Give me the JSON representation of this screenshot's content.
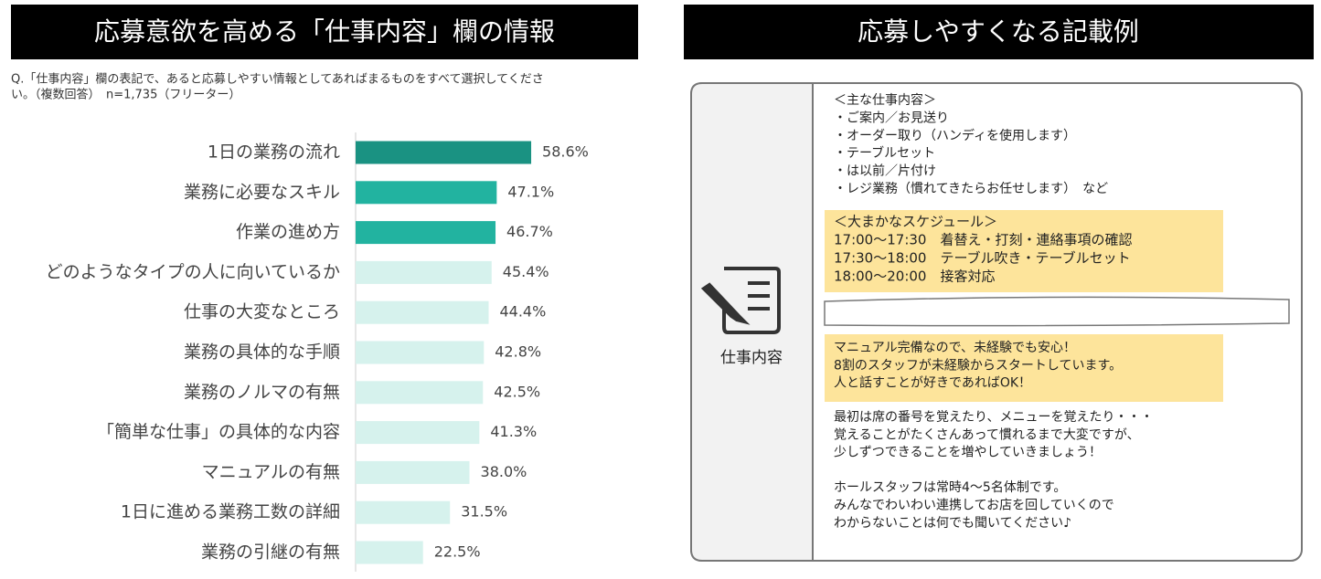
{
  "chart_data": {
    "type": "hbar",
    "title": "応募意欲を高める「仕事内容」欄の情報",
    "subtitle": [
      "Q.「仕事内容」欄の表記で、あると応募しやすい情報としてあればまるものをすべて選択してくださ",
      "い。（複数回答）　n=1,735（フリーター）"
    ],
    "categories": [
      "1日の業務の流れ",
      "業務に必要なスキル",
      "作業の進め方",
      "どのようなタイプの人に向いているか",
      "仕事の大変なところ",
      "業務の具体的な手順",
      "業務のノルマの有無",
      "「簡単な仕事」の具体的な内容",
      "マニュアルの有無",
      "1日に進める業務工数の詳細",
      "業務の引継の有無"
    ],
    "values": [
      58.6,
      47.1,
      46.7,
      45.4,
      44.4,
      42.8,
      42.5,
      41.3,
      38.0,
      31.5,
      22.5
    ],
    "value_labels": [
      "58.6%",
      "47.1%",
      "46.7%",
      "45.4%",
      "44.4%",
      "42.8%",
      "42.5%",
      "41.3%",
      "38.0%",
      "31.5%",
      "22.5%"
    ],
    "colors": [
      "#1a9282",
      "#22b3a0",
      "#22b3a0",
      "#d6f2ed",
      "#d6f2ed",
      "#d6f2ed",
      "#d6f2ed",
      "#d6f2ed",
      "#d6f2ed",
      "#d6f2ed",
      "#d6f2ed"
    ]
  },
  "example": {
    "title": "応募しやすくなる記載例",
    "label": "仕事内容",
    "duties": [
      "＜主な仕事内容＞",
      "・ご案内／お見送り",
      "・オーダー取り（ハンディを使用します）",
      "・テーブルセット",
      "・は以前／片付け",
      "・レジ業務（慣れてきたらお任せします）　など"
    ],
    "schedule": [
      "＜大まかなスケジュール＞",
      "17:00～17:30　着替え・打刻・連絡事項の確認",
      "17:30～18:00　テーブル吹き・テーブルセット",
      "18:00～20:00　接客対応"
    ],
    "appeal": [
      "マニュアル完備なので、未経験でも安心！",
      "8割のスタッフが未経験からスタートしています。",
      "人と話すことが好きであればOK！"
    ],
    "notes": [
      [
        "最初は席の番号を覚えたり、メニューを覚えたり・・・",
        "覚えることがたくさんあって慣れるまで大変ですが、",
        "少しずつできることを増やしていきましょう！"
      ],
      [
        "ホールスタッフは常時4～5名体制です。",
        "みんなでわいわい連携してお店を回していくので",
        "わからないことは何でも聞いてください♪"
      ]
    ]
  }
}
